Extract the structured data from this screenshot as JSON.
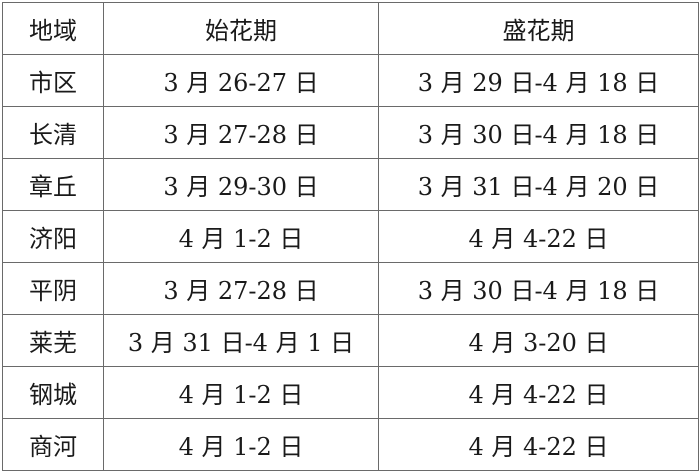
{
  "table": {
    "headers": [
      "地域",
      "始花期",
      "盛花期"
    ],
    "rows": [
      [
        "市区",
        "3 月 26-27 日",
        "3 月 29 日-4 月 18 日"
      ],
      [
        "长清",
        "3 月 27-28 日",
        "3 月 30 日-4 月 18 日"
      ],
      [
        "章丘",
        "3 月 29-30 日",
        "3 月 31 日-4 月 20 日"
      ],
      [
        "济阳",
        "4 月 1-2 日",
        "4 月 4-22 日"
      ],
      [
        "平阴",
        "3 月 27-28 日",
        "3 月 30 日-4 月 18 日"
      ],
      [
        "莱芜",
        "3 月 31 日-4 月 1 日",
        "4 月 3-20 日"
      ],
      [
        "钢城",
        "4 月 1-2 日",
        "4 月 4-22 日"
      ],
      [
        "商河",
        "4 月 1-2 日",
        "4 月 4-22 日"
      ]
    ]
  }
}
